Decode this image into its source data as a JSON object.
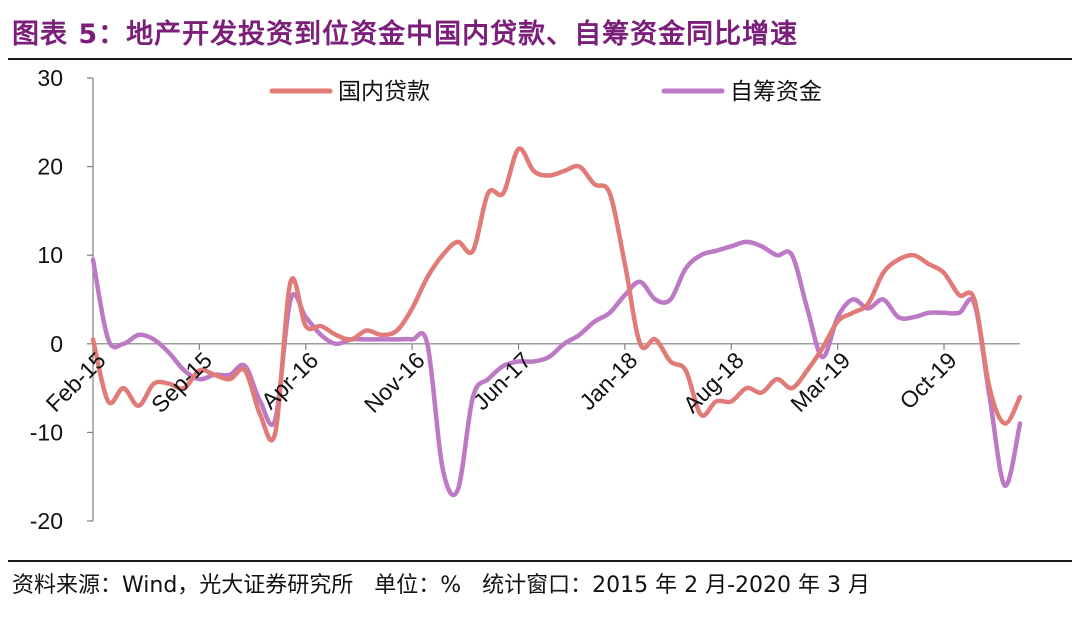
{
  "figure": {
    "title": "图表 5：地产开发投资到位资金中国内贷款、自筹资金同比增速",
    "source_note": "资料来源：Wind，光大证券研究所   单位：%   统计窗口：2015 年 2 月-2020 年 3 月"
  },
  "colors": {
    "domestic_loans": "#e07b78",
    "self_raised": "#bd78c6",
    "axis": "#7f7f7f"
  },
  "chart_data": {
    "type": "line",
    "x_start": "2015-02",
    "x_end": "2020-03",
    "x_ticks": [
      "Feb-15",
      "Sep-15",
      "Apr-16",
      "Nov-16",
      "Jun-17",
      "Jan-18",
      "Aug-18",
      "Mar-19",
      "Oct-19"
    ],
    "y_ticks": [
      30,
      20,
      10,
      0,
      -10,
      -20
    ],
    "ylim": [
      -20,
      30
    ],
    "legend_position": "top",
    "series": [
      {
        "name": "国内贷款",
        "values": [
          0.5,
          -6.5,
          -5.0,
          -7.0,
          -4.5,
          -4.5,
          -5.0,
          -3.0,
          -3.5,
          -4.0,
          -3.0,
          -8.0,
          -10.0,
          7.0,
          2.0,
          2.0,
          1.0,
          0.5,
          1.5,
          1.0,
          1.5,
          4.0,
          7.5,
          10.0,
          11.5,
          10.5,
          17.0,
          17.0,
          22.0,
          19.5,
          19.0,
          19.5,
          20.0,
          18.0,
          17.0,
          9.0,
          0.0,
          0.5,
          -2.0,
          -3.0,
          -8.0,
          -6.5,
          -6.5,
          -5.0,
          -5.5,
          -4.0,
          -5.0,
          -3.0,
          -0.5,
          2.5,
          3.5,
          4.5,
          8.0,
          9.5,
          10.0,
          9.0,
          8.0,
          5.5,
          5.0,
          -5.0,
          -9.0,
          -6.0
        ]
      },
      {
        "name": "自筹资金",
        "values": [
          9.5,
          0.5,
          0.0,
          1.0,
          0.5,
          -1.0,
          -3.0,
          -4.0,
          -3.5,
          -3.5,
          -2.5,
          -6.5,
          -8.5,
          5.0,
          3.0,
          1.0,
          0.0,
          0.5,
          0.5,
          0.5,
          0.5,
          0.5,
          0.0,
          -14.0,
          -16.5,
          -6.0,
          -4.0,
          -2.5,
          -2.0,
          -2.0,
          -1.5,
          0.0,
          1.0,
          2.5,
          3.5,
          5.5,
          7.0,
          5.0,
          5.0,
          8.5,
          10.0,
          10.5,
          11.0,
          11.5,
          11.0,
          10.0,
          10.0,
          4.0,
          -1.5,
          3.0,
          5.0,
          4.0,
          5.0,
          3.0,
          3.0,
          3.5,
          3.5,
          3.5,
          4.5,
          -6.0,
          -16.0,
          -9.0
        ]
      }
    ]
  }
}
